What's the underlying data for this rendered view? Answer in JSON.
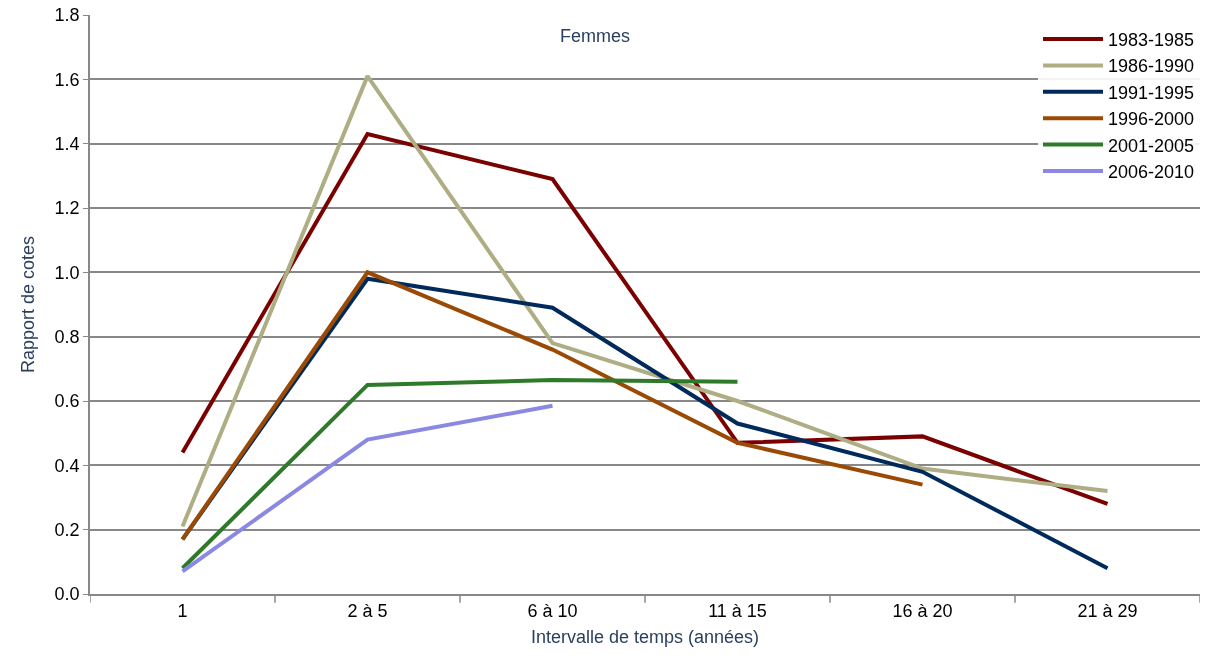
{
  "chart_data": {
    "type": "line",
    "xlabel": "Intervalle de temps (années)",
    "ylabel": "Rapport de cotes",
    "annotations": [
      "Femmes"
    ],
    "categories": [
      "1",
      "2 à 5",
      "6 à 10",
      "11 à 15",
      "16 à 20",
      "21 à 29"
    ],
    "series": [
      {
        "name": "1983-1985",
        "color": "#7b0000",
        "values": [
          0.44,
          1.43,
          1.29,
          0.47,
          0.49,
          0.28
        ]
      },
      {
        "name": "1986-1990",
        "color": "#aead83",
        "values": [
          0.21,
          1.61,
          0.78,
          0.6,
          0.39,
          0.32
        ]
      },
      {
        "name": "1991-1995",
        "color": "#002a5c",
        "values": [
          0.17,
          0.98,
          0.89,
          0.53,
          0.38,
          0.08
        ]
      },
      {
        "name": "1996-2000",
        "color": "#9a4a04",
        "values": [
          0.17,
          1.0,
          0.76,
          0.47,
          0.34,
          null
        ]
      },
      {
        "name": "2001-2005",
        "color": "#2f7a2a",
        "values": [
          0.08,
          0.65,
          0.665,
          0.66,
          null,
          null
        ]
      },
      {
        "name": "2006-2010",
        "color": "#8a88e2",
        "values": [
          0.07,
          0.48,
          0.585,
          null,
          null,
          null
        ]
      }
    ],
    "ylim": [
      0,
      1.8
    ],
    "yticks": [
      {
        "value": 0,
        "label": "0.0"
      },
      {
        "value": 0.2,
        "label": "0.2"
      },
      {
        "value": 0.4,
        "label": "0.4"
      },
      {
        "value": 0.6,
        "label": "0.6"
      },
      {
        "value": 0.8,
        "label": "0.8"
      },
      {
        "value": 1.0,
        "label": "1.0"
      },
      {
        "value": 1.2,
        "label": "1.2"
      },
      {
        "value": 1.4,
        "label": "1.4"
      },
      {
        "value": 1.6,
        "label": "1.6"
      },
      {
        "value": 1.8,
        "label": "1.8"
      }
    ],
    "grid": "y",
    "legend": "top right",
    "marker": "none",
    "line_style": "solid"
  }
}
